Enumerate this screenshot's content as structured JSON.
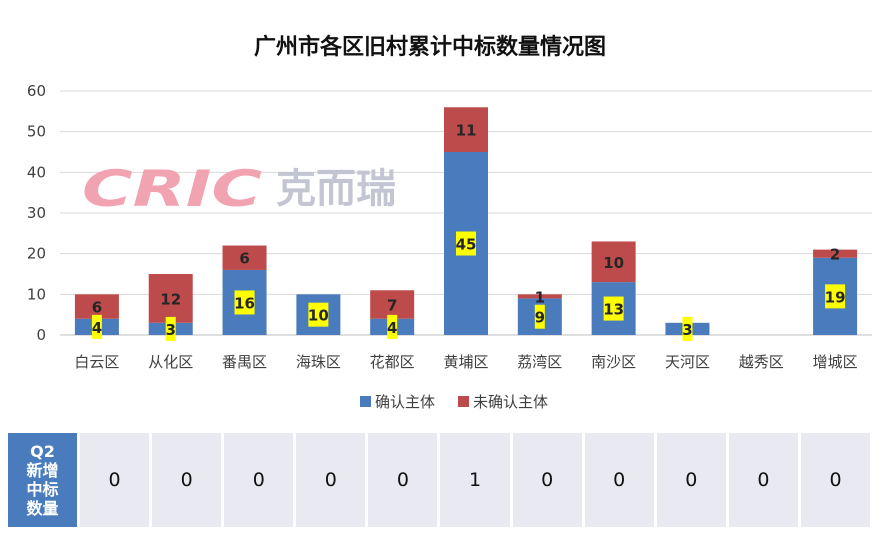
{
  "chart_data": {
    "type": "bar",
    "stacked": true,
    "title": "广州市各区旧村累计中标数量情况图",
    "categories": [
      "白云区",
      "从化区",
      "番禺区",
      "海珠区",
      "花都区",
      "黄埔区",
      "荔湾区",
      "南沙区",
      "天河区",
      "越秀区",
      "增城区"
    ],
    "series": [
      {
        "name": "确认主体",
        "color": "#4a7bbd",
        "values": [
          4,
          3,
          16,
          10,
          4,
          45,
          9,
          13,
          3,
          0,
          19
        ]
      },
      {
        "name": "未确认主体",
        "color": "#bd4b4b",
        "values": [
          6,
          12,
          6,
          0,
          7,
          11,
          1,
          10,
          0,
          0,
          2
        ]
      }
    ],
    "ylim": [
      0,
      60
    ],
    "yticks": [
      0,
      10,
      20,
      30,
      40,
      50,
      60
    ],
    "grid": true,
    "legend": "bottom",
    "label_highlight_color": "#ffff00"
  },
  "watermark": {
    "latin": "CRIC",
    "cjk": "克而瑞"
  },
  "q2_table": {
    "header_lines": [
      "Q2",
      "新增",
      "中标",
      "数量"
    ],
    "values": [
      0,
      0,
      0,
      0,
      0,
      1,
      0,
      0,
      0,
      0,
      0
    ]
  }
}
